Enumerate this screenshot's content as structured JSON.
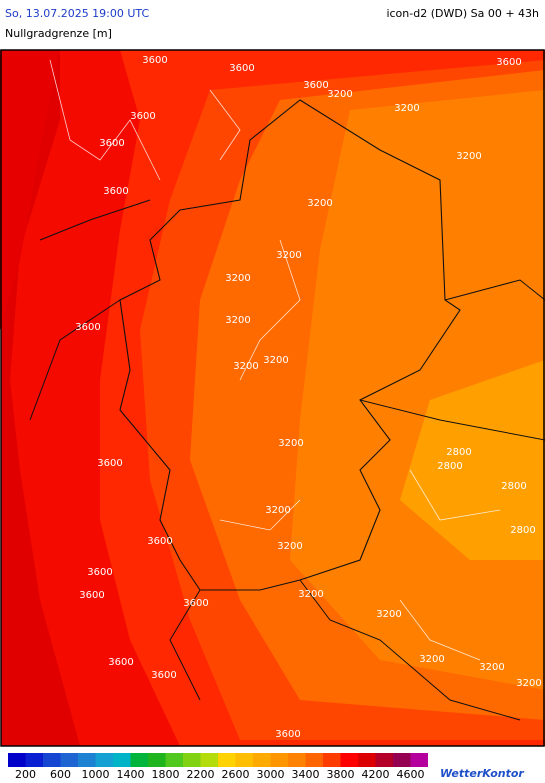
{
  "header": {
    "timestamp": "So, 13.07.2025 19:00 UTC",
    "model": "icon-d2 (DWD) Sa 00 + 43h",
    "parameter": "Nullgradgrenze [m]"
  },
  "map": {
    "contour_labels": [
      "3600",
      "3600",
      "3600",
      "3200",
      "3600",
      "3200",
      "3600",
      "3600",
      "3200",
      "3600",
      "3200",
      "3200",
      "3200",
      "3200",
      "3600",
      "3200",
      "3200",
      "3200",
      "3600",
      "2800",
      "2800",
      "2800",
      "3200",
      "2800",
      "3600",
      "3200",
      "3600",
      "3600",
      "3600",
      "3200",
      "3200",
      "3600",
      "3600",
      "3200",
      "3200",
      "3200",
      "3600"
    ]
  },
  "colorbar": {
    "colors": [
      "#0000c8",
      "#0a1ed2",
      "#1446d2",
      "#1e64d2",
      "#1e82d2",
      "#14a0d2",
      "#00b4c8",
      "#00b43c",
      "#1eb41e",
      "#50c81e",
      "#82d214",
      "#b4dc0a",
      "#ffd200",
      "#ffbe00",
      "#ffaa00",
      "#ff9600",
      "#ff8200",
      "#ff6400",
      "#ff3c00",
      "#ff0000",
      "#dc0000",
      "#b40028",
      "#960050",
      "#b4009c"
    ],
    "labels": [
      200,
      600,
      1000,
      1400,
      1800,
      2200,
      2600,
      3000,
      3400,
      3800,
      4200,
      4600
    ]
  },
  "brand": "WetterKontor"
}
